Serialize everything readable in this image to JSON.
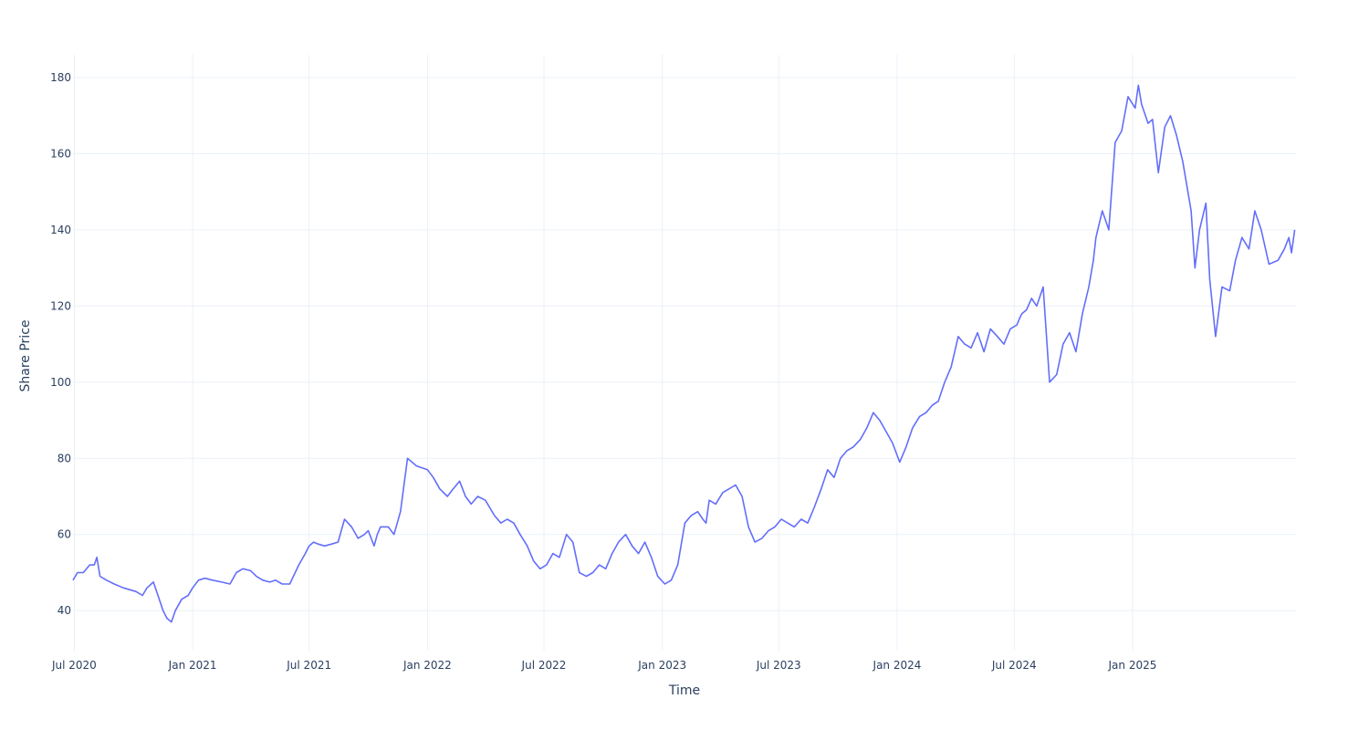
{
  "chart_data": {
    "type": "line",
    "title": "",
    "xlabel": "Time",
    "ylabel": "Share Price",
    "xlim": [
      "2020-06-29",
      "2025-09-12"
    ],
    "ylim": [
      29.5,
      186
    ],
    "grid": true,
    "x_ticks": [
      {
        "date": "2020-07-01",
        "label": "Jul 2020"
      },
      {
        "date": "2021-01-01",
        "label": "Jan 2021"
      },
      {
        "date": "2021-07-01",
        "label": "Jul 2021"
      },
      {
        "date": "2022-01-01",
        "label": "Jan 2022"
      },
      {
        "date": "2022-07-01",
        "label": "Jul 2022"
      },
      {
        "date": "2023-01-01",
        "label": "Jan 2023"
      },
      {
        "date": "2023-07-01",
        "label": "Jul 2023"
      },
      {
        "date": "2024-01-01",
        "label": "Jan 2024"
      },
      {
        "date": "2024-07-01",
        "label": "Jul 2024"
      },
      {
        "date": "2025-01-01",
        "label": "Jan 2025"
      }
    ],
    "y_ticks": [
      40,
      60,
      80,
      100,
      120,
      140,
      160,
      180
    ],
    "series": [
      {
        "color": "#636efa",
        "x": [
          "2020-06-29",
          "2020-07-06",
          "2020-07-15",
          "2020-07-25",
          "2020-08-01",
          "2020-08-05",
          "2020-08-10",
          "2020-08-20",
          "2020-09-01",
          "2020-09-15",
          "2020-09-25",
          "2020-10-05",
          "2020-10-15",
          "2020-10-22",
          "2020-11-01",
          "2020-11-10",
          "2020-11-16",
          "2020-11-22",
          "2020-11-29",
          "2020-12-05",
          "2020-12-15",
          "2020-12-25",
          "2021-01-01",
          "2021-01-10",
          "2021-01-20",
          "2021-02-01",
          "2021-02-15",
          "2021-02-28",
          "2021-03-10",
          "2021-03-20",
          "2021-04-01",
          "2021-04-10",
          "2021-04-20",
          "2021-05-01",
          "2021-05-10",
          "2021-05-20",
          "2021-06-01",
          "2021-06-15",
          "2021-06-25",
          "2021-07-01",
          "2021-07-08",
          "2021-07-15",
          "2021-07-25",
          "2021-08-05",
          "2021-08-15",
          "2021-08-25",
          "2021-09-05",
          "2021-09-15",
          "2021-09-25",
          "2021-10-01",
          "2021-10-10",
          "2021-10-15",
          "2021-10-20",
          "2021-11-01",
          "2021-11-10",
          "2021-11-20",
          "2021-12-01",
          "2021-12-15",
          "2022-01-01",
          "2022-01-10",
          "2022-01-20",
          "2022-02-01",
          "2022-02-10",
          "2022-02-20",
          "2022-03-01",
          "2022-03-10",
          "2022-03-20",
          "2022-04-01",
          "2022-04-15",
          "2022-04-25",
          "2022-05-05",
          "2022-05-15",
          "2022-05-25",
          "2022-06-05",
          "2022-06-15",
          "2022-06-25",
          "2022-07-05",
          "2022-07-15",
          "2022-07-25",
          "2022-08-05",
          "2022-08-15",
          "2022-08-25",
          "2022-09-05",
          "2022-09-15",
          "2022-09-25",
          "2022-10-05",
          "2022-10-15",
          "2022-10-25",
          "2022-11-05",
          "2022-11-15",
          "2022-11-25",
          "2022-12-05",
          "2022-12-15",
          "2022-12-25",
          "2023-01-05",
          "2023-01-15",
          "2023-01-25",
          "2023-02-05",
          "2023-02-15",
          "2023-02-25",
          "2023-03-05",
          "2023-03-10",
          "2023-03-15",
          "2023-03-25",
          "2023-04-05",
          "2023-04-15",
          "2023-04-25",
          "2023-05-05",
          "2023-05-15",
          "2023-05-25",
          "2023-06-05",
          "2023-06-15",
          "2023-06-25",
          "2023-07-05",
          "2023-07-15",
          "2023-07-25",
          "2023-08-05",
          "2023-08-15",
          "2023-08-25",
          "2023-09-05",
          "2023-09-15",
          "2023-09-25",
          "2023-10-05",
          "2023-10-15",
          "2023-10-25",
          "2023-11-05",
          "2023-11-15",
          "2023-11-25",
          "2023-12-05",
          "2023-12-15",
          "2023-12-25",
          "2024-01-05",
          "2024-01-15",
          "2024-01-25",
          "2024-02-05",
          "2024-02-15",
          "2024-02-25",
          "2024-03-05",
          "2024-03-15",
          "2024-03-25",
          "2024-04-05",
          "2024-04-15",
          "2024-04-25",
          "2024-05-05",
          "2024-05-15",
          "2024-05-25",
          "2024-06-05",
          "2024-06-15",
          "2024-06-25",
          "2024-07-05",
          "2024-07-10",
          "2024-07-13",
          "2024-07-20",
          "2024-07-28",
          "2024-08-05",
          "2024-08-15",
          "2024-08-25",
          "2024-09-05",
          "2024-09-15",
          "2024-09-25",
          "2024-10-05",
          "2024-10-15",
          "2024-10-25",
          "2024-11-01",
          "2024-11-05",
          "2024-11-15",
          "2024-11-25",
          "2024-12-05",
          "2024-12-15",
          "2024-12-25",
          "2025-01-05",
          "2025-01-10",
          "2025-01-15",
          "2025-01-25",
          "2025-02-01",
          "2025-02-10",
          "2025-02-20",
          "2025-03-01",
          "2025-03-10",
          "2025-03-20",
          "2025-03-28",
          "2025-04-02",
          "2025-04-08",
          "2025-04-15",
          "2025-04-25",
          "2025-05-01",
          "2025-05-10",
          "2025-05-20",
          "2025-06-01",
          "2025-06-10",
          "2025-06-20",
          "2025-07-01",
          "2025-07-10",
          "2025-07-20",
          "2025-08-01",
          "2025-08-15",
          "2025-08-25",
          "2025-09-01",
          "2025-09-05",
          "2025-09-10"
        ],
        "y": [
          48,
          50,
          50,
          52,
          52,
          54,
          49,
          48,
          47,
          46,
          45.5,
          45,
          44,
          46,
          47.5,
          43,
          40,
          38,
          37,
          40,
          43,
          44,
          46,
          48,
          48.5,
          48,
          47.5,
          47,
          50,
          51,
          50.5,
          49,
          48,
          47.5,
          48,
          47,
          47,
          52,
          55,
          57,
          58,
          57.5,
          57,
          57.5,
          58,
          64,
          62,
          59,
          60,
          61,
          57,
          60,
          62,
          62,
          60,
          66,
          80,
          78,
          77,
          75,
          72,
          70,
          72,
          74,
          70,
          68,
          70,
          69,
          65,
          63,
          64,
          63,
          60,
          57,
          53,
          51,
          52,
          55,
          54,
          60,
          58,
          50,
          49,
          50,
          52,
          51,
          55,
          58,
          60,
          57,
          55,
          58,
          54,
          49,
          47,
          48,
          52,
          63,
          65,
          66,
          64,
          63,
          69,
          68,
          71,
          72,
          73,
          70,
          62,
          58,
          59,
          61,
          62,
          64,
          63,
          62,
          64,
          63,
          67,
          72,
          77,
          75,
          80,
          82,
          83,
          85,
          88,
          92,
          90,
          87,
          84,
          79,
          83,
          88,
          91,
          92,
          94,
          95,
          100,
          104,
          112,
          110,
          109,
          113,
          108,
          114,
          112,
          110,
          114,
          115,
          117,
          118,
          119,
          122,
          120,
          125,
          100,
          102,
          110,
          113,
          108,
          118,
          125,
          132,
          138,
          145,
          140,
          163,
          166,
          175,
          172,
          178,
          173,
          168,
          169,
          155,
          167,
          170,
          165,
          158,
          150,
          145,
          130,
          140,
          147,
          127,
          112,
          125,
          124,
          132,
          138,
          135,
          145,
          140,
          131,
          132,
          135,
          138,
          134,
          140
        ]
      }
    ]
  }
}
